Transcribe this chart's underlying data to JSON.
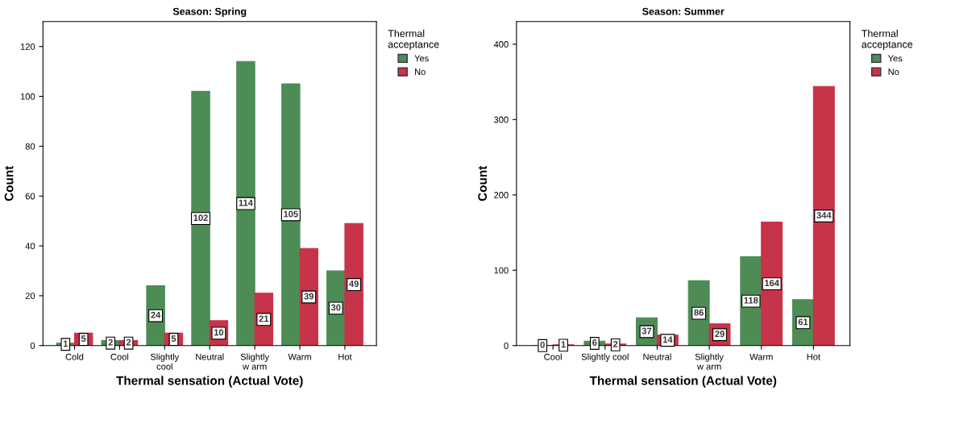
{
  "chart_data": [
    {
      "type": "bar",
      "title": "Season: Spring",
      "xlabel": "Thermal sensation (Actual Vote)",
      "ylabel": "Count",
      "legend_title": "Thermal\nacceptance",
      "legend": "top right",
      "categories": [
        "Cold",
        "Cool",
        "Slightly\ncool",
        "Neutral",
        "Slightly\nw arm",
        "Warm",
        "Hot"
      ],
      "series": [
        {
          "name": "Yes",
          "color": "#4e8c55",
          "values": [
            1,
            2,
            24,
            102,
            114,
            105,
            30
          ]
        },
        {
          "name": "No",
          "color": "#c73349",
          "values": [
            5,
            2,
            5,
            10,
            21,
            39,
            49
          ]
        }
      ],
      "ylim": [
        0,
        130
      ],
      "yticks": [
        0,
        20,
        40,
        60,
        80,
        100,
        120
      ],
      "data_labels": true,
      "grid": false
    },
    {
      "type": "bar",
      "title": "Season: Summer",
      "xlabel": "Thermal sensation (Actual Vote)",
      "ylabel": "Count",
      "legend_title": "Thermal\nacceptance",
      "legend": "top right",
      "categories": [
        "Cool",
        "Slightly cool",
        "Neutral",
        "Slightly\nw arm",
        "Warm",
        "Hot"
      ],
      "series": [
        {
          "name": "Yes",
          "color": "#4e8c55",
          "values": [
            0,
            6,
            37,
            86,
            118,
            61
          ]
        },
        {
          "name": "No",
          "color": "#c73349",
          "values": [
            1,
            2,
            14,
            29,
            164,
            344
          ]
        }
      ],
      "ylim": [
        0,
        430
      ],
      "yticks": [
        0,
        100,
        200,
        300,
        400
      ],
      "data_labels": true,
      "grid": false
    }
  ]
}
